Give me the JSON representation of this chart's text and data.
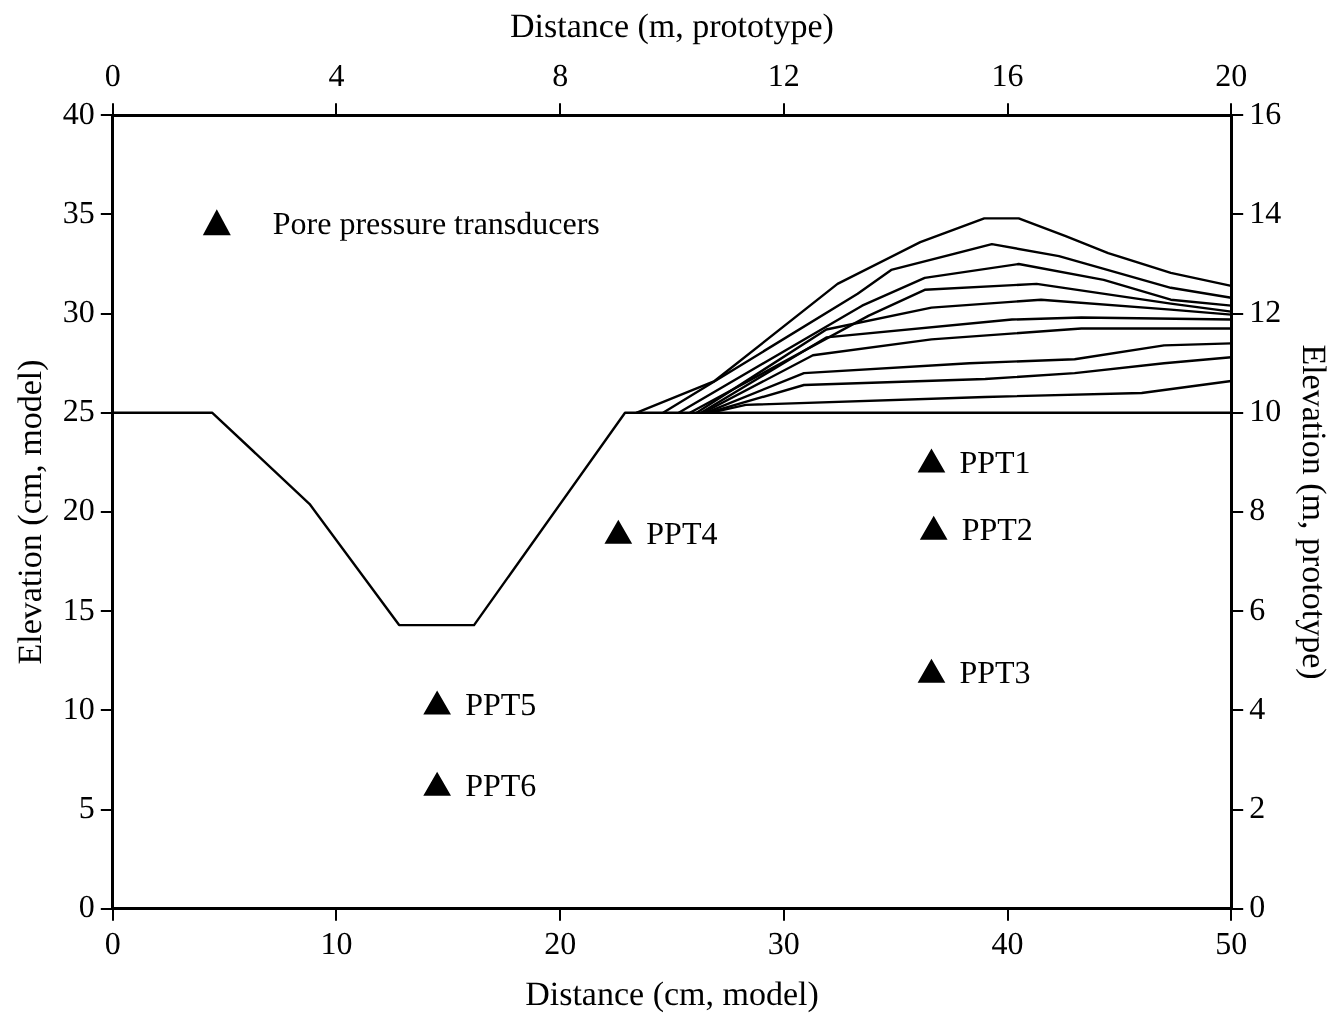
{
  "chart_data": {
    "type": "line",
    "xlabel": "Distance (cm, model)",
    "ylabel": "Elevation (cm, model)",
    "x2label": "Distance (m, prototype)",
    "y2label": "Elevation (m, prototype)",
    "xlim": [
      0,
      50
    ],
    "xticks": [
      0,
      10,
      20,
      30,
      40,
      50
    ],
    "ylim": [
      0,
      40
    ],
    "yticks": [
      0,
      5,
      10,
      15,
      20,
      25,
      30,
      35,
      40
    ],
    "x2lim": [
      0,
      20
    ],
    "x2ticks": [
      0,
      4,
      8,
      12,
      16,
      20
    ],
    "y2lim": [
      0,
      16
    ],
    "y2ticks": [
      0,
      2,
      4,
      6,
      8,
      10,
      12,
      14,
      16
    ],
    "grid": false,
    "legend": "top left",
    "line_style": "solid",
    "series": [
      {
        "color": "#000000",
        "marker": "none",
        "x": [
          0,
          4.45,
          8.8,
          12.8,
          16.15,
          22.9,
          50
        ],
        "values": [
          25,
          25,
          20.4,
          14.3,
          14.3,
          25,
          25
        ]
      },
      {
        "color": "#000000",
        "marker": "none",
        "x": [
          23.4,
          26.9,
          32.4,
          36.1,
          38.96,
          40.5,
          42.6,
          44.5,
          47.3,
          50
        ],
        "values": [
          25,
          26.6,
          31.5,
          33.6,
          34.8,
          34.8,
          33.9,
          33.05,
          32.05,
          31.4
        ]
      },
      {
        "color": "#000000",
        "marker": "none",
        "x": [
          24.6,
          33.3,
          34.8,
          39.3,
          42.3,
          47.3,
          50
        ],
        "values": [
          25,
          31.0,
          32.2,
          33.5,
          32.9,
          31.3,
          30.8
        ]
      },
      {
        "color": "#000000",
        "marker": "none",
        "x": [
          25.3,
          33.5,
          36.3,
          40.5,
          44.3,
          47.3,
          50
        ],
        "values": [
          25,
          30.4,
          31.8,
          32.5,
          31.7,
          30.7,
          30.4
        ]
      },
      {
        "color": "#000000",
        "marker": "none",
        "x": [
          25.8,
          33.8,
          36.3,
          41.3,
          47.3,
          50
        ],
        "values": [
          25,
          29.9,
          31.2,
          31.5,
          30.5,
          30.1
        ]
      },
      {
        "color": "#000000",
        "marker": "none",
        "x": [
          26.1,
          31.9,
          36.6,
          41.5,
          47.3,
          50
        ],
        "values": [
          25,
          29.2,
          30.3,
          30.7,
          30.2,
          29.95
        ]
      },
      {
        "color": "#000000",
        "marker": "none",
        "x": [
          26.3,
          31.9,
          40.2,
          43.3,
          50
        ],
        "values": [
          25,
          28.8,
          29.7,
          29.8,
          29.7
        ]
      },
      {
        "color": "#000000",
        "marker": "none",
        "x": [
          26.4,
          31.3,
          36.6,
          43.3,
          50
        ],
        "values": [
          25,
          27.9,
          28.7,
          29.25,
          29.25
        ]
      },
      {
        "color": "#000000",
        "marker": "none",
        "x": [
          26.5,
          30.9,
          38.3,
          43,
          47,
          50
        ],
        "values": [
          25,
          27.0,
          27.5,
          27.7,
          28.4,
          28.5
        ]
      },
      {
        "color": "#000000",
        "marker": "none",
        "x": [
          26.6,
          30.9,
          39,
          43,
          47,
          50
        ],
        "values": [
          25,
          26.4,
          26.7,
          27.0,
          27.5,
          27.8
        ]
      },
      {
        "color": "#000000",
        "marker": "none",
        "x": [
          26.7,
          28.3,
          39,
          46,
          48,
          50
        ],
        "values": [
          25,
          25.4,
          25.8,
          26.0,
          26.3,
          26.6
        ]
      },
      {
        "type": "scatter",
        "name": "Pore pressure transducers",
        "color": "#000000",
        "marker": "triangle",
        "x": [
          36.6,
          36.7,
          36.6,
          22.6,
          14.5,
          14.5
        ],
        "values": [
          22.4,
          19.0,
          11.8,
          18.8,
          10.2,
          6.1
        ]
      }
    ],
    "annotations": [
      {
        "text": "PPT1",
        "x": 36.6,
        "y": 22.4
      },
      {
        "text": "PPT2",
        "x": 36.7,
        "y": 19.0
      },
      {
        "text": "PPT3",
        "x": 36.6,
        "y": 11.8
      },
      {
        "text": "PPT4",
        "x": 22.6,
        "y": 18.8
      },
      {
        "text": "PPT5",
        "x": 14.5,
        "y": 10.2
      },
      {
        "text": "PPT6",
        "x": 14.5,
        "y": 6.1
      }
    ]
  }
}
